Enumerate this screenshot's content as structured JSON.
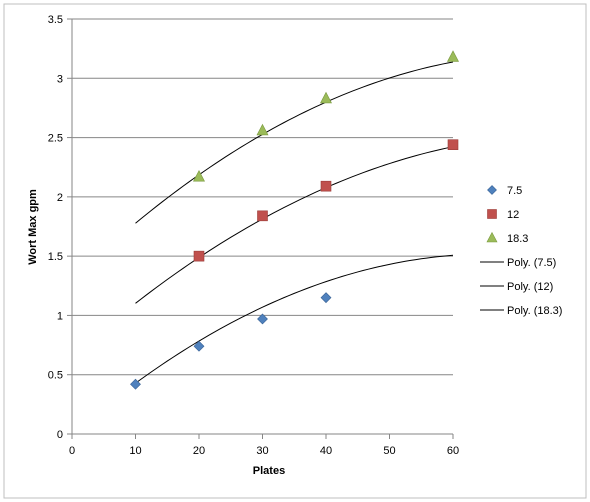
{
  "chart_data": {
    "type": "scatter",
    "xlabel": "Plates",
    "ylabel": "Wort Max gpm",
    "xlim": [
      0,
      60
    ],
    "ylim": [
      0,
      3.5
    ],
    "x_ticks": [
      "0",
      "10",
      "20",
      "30",
      "40",
      "50",
      "60"
    ],
    "y_ticks": [
      "0",
      "0.5",
      "1",
      "1.5",
      "2",
      "2.5",
      "3",
      "3.5"
    ],
    "grid": "horizontal major gridlines",
    "legend_position": "right",
    "series": [
      {
        "name": "7.5",
        "marker": "diamond",
        "color": "#4F81BD",
        "points": [
          [
            10,
            0.42
          ],
          [
            20,
            0.74
          ],
          [
            30,
            0.97
          ],
          [
            40,
            1.15
          ]
        ]
      },
      {
        "name": "12",
        "marker": "square",
        "color": "#C0504D",
        "points": [
          [
            20,
            1.5
          ],
          [
            30,
            1.84
          ],
          [
            40,
            2.09
          ],
          [
            60,
            2.44
          ]
        ]
      },
      {
        "name": "18.3",
        "marker": "triangle",
        "color": "#9BBB59",
        "points": [
          [
            20,
            2.17
          ],
          [
            30,
            2.56
          ],
          [
            40,
            2.83
          ],
          [
            60,
            3.18
          ]
        ]
      }
    ],
    "trendlines": [
      {
        "name": "Poly. (7.5)",
        "type": "polynomial",
        "color": "#000000",
        "x_range": [
          10,
          60
        ],
        "coeffs": [
          -0.000349,
          0.046,
          0.0034
        ]
      },
      {
        "name": "Poly. (12)",
        "type": "polynomial",
        "color": "#000000",
        "x_range": [
          10,
          60
        ],
        "coeffs": [
          -0.000305,
          0.04777,
          0.655
        ]
      },
      {
        "name": "Poly. (18.3)",
        "type": "polynomial",
        "color": "#000000",
        "x_range": [
          10,
          60
        ],
        "coeffs": [
          -0.000342,
          0.05115,
          1.3
        ]
      }
    ]
  }
}
